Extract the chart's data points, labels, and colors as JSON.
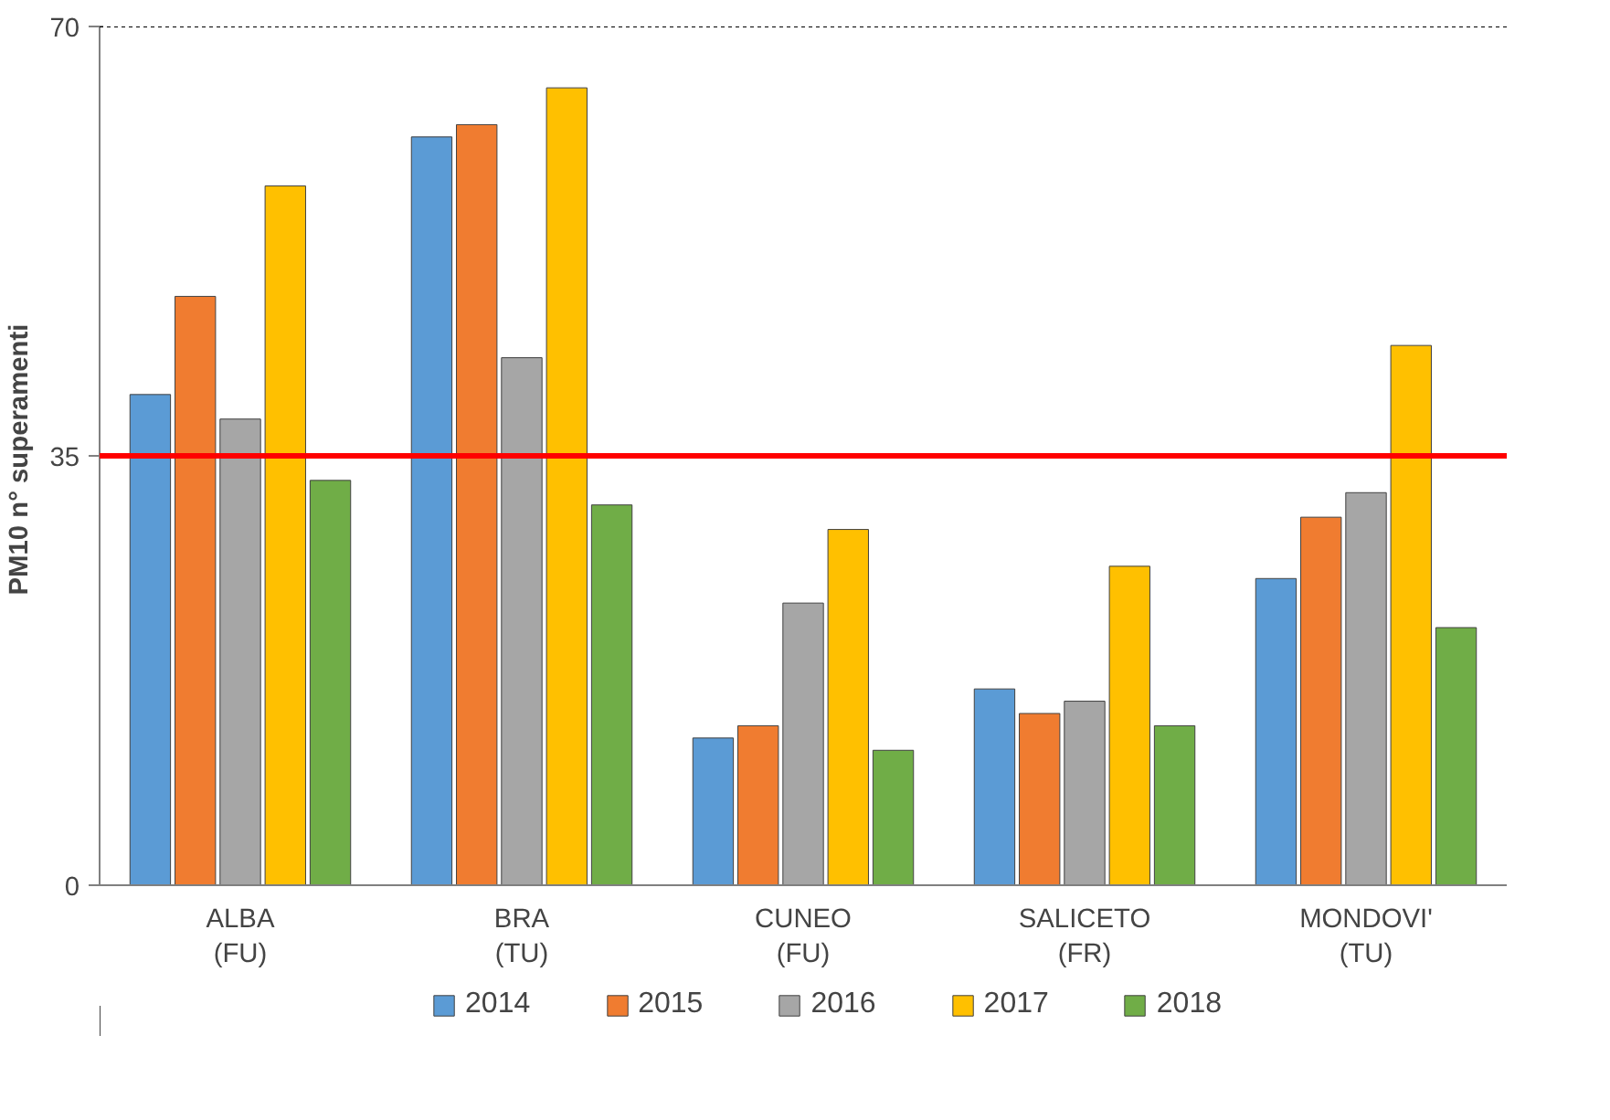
{
  "chart_data": {
    "type": "bar",
    "ylabel": "PM10  n° superamenti",
    "categories": [
      "ALBA\n(FU)",
      "BRA\n(TU)",
      "CUNEO\n(FU)",
      "SALICETO\n(FR)",
      "MONDOVI'\n(TU)"
    ],
    "series": [
      {
        "name": "2014",
        "color": "#5b9bd5",
        "values": [
          40,
          61,
          12,
          16,
          25
        ]
      },
      {
        "name": "2015",
        "color": "#f07c30",
        "values": [
          48,
          62,
          13,
          14,
          30
        ]
      },
      {
        "name": "2016",
        "color": "#a6a6a6",
        "values": [
          38,
          43,
          23,
          15,
          32
        ]
      },
      {
        "name": "2017",
        "color": "#ffc000",
        "values": [
          57,
          65,
          29,
          26,
          44
        ]
      },
      {
        "name": "2018",
        "color": "#70ad47",
        "values": [
          33,
          31,
          11,
          13,
          21
        ]
      }
    ],
    "ylim": [
      0,
      70
    ],
    "yticks": [
      0,
      35,
      70
    ],
    "grid": false,
    "legend": "bottom",
    "ref_lines": [
      {
        "axis": "y",
        "value": 35,
        "color": "#ff0000"
      }
    ]
  }
}
